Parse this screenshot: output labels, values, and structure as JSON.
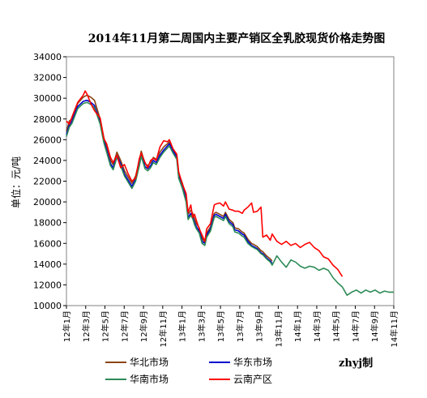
{
  "chart_data": {
    "type": "line",
    "title": "2014年11月第二周国内主要产销区全乳胶现货价格走势图",
    "ylabel": "单位：元/吨",
    "xlabel": "",
    "ylim": [
      10000,
      34000
    ],
    "yticks": [
      10000,
      12000,
      14000,
      16000,
      18000,
      20000,
      22000,
      24000,
      26000,
      28000,
      30000,
      32000,
      34000
    ],
    "x_tick_labels": [
      "12年1月",
      "12年3月",
      "12年5月",
      "12年7月",
      "12年9月",
      "12年11月",
      "13年1月",
      "13年3月",
      "13年5月",
      "13年7月",
      "13年9月",
      "13年11月",
      "14年1月",
      "14年3月",
      "14年5月",
      "14年7月",
      "14年9月",
      "14年11月"
    ],
    "x_month_range": [
      0,
      35
    ],
    "grid": false,
    "legend_position": "bottom",
    "watermark": "zhyj制",
    "series": [
      {
        "name": "华北市场",
        "color": "#8B4513",
        "x": [
          0,
          0.3,
          0.6,
          1.2,
          1.8,
          2.2,
          2.6,
          3.0,
          3.6,
          4.0,
          4.3,
          4.7,
          5.0,
          5.4,
          5.8,
          6.2,
          6.6,
          7.0,
          7.4,
          7.8,
          8.0,
          8.4,
          8.7,
          9.0,
          9.3,
          9.6,
          10.0,
          10.4,
          10.8,
          11.0,
          11.4,
          11.8,
          12.0,
          12.4,
          12.8,
          13.0,
          13.3,
          13.5,
          13.7,
          13.9,
          14.2,
          14.5,
          14.8,
          15.0,
          15.4,
          15.8,
          16.0,
          16.4,
          16.8,
          17.0,
          17.4,
          17.8,
          18.0,
          18.4,
          18.8,
          19.0,
          19.4,
          19.8,
          20.0,
          20.4,
          20.8,
          21.0,
          21.4,
          21.8,
          22.0
        ],
        "values": [
          26800,
          27800,
          28000,
          29500,
          30100,
          30300,
          30100,
          29800,
          28000,
          26200,
          25300,
          24000,
          23600,
          24800,
          24000,
          23000,
          22400,
          21800,
          22500,
          24000,
          24900,
          23700,
          23500,
          23800,
          24300,
          24100,
          24800,
          25300,
          25600,
          25800,
          25100,
          24500,
          22800,
          21800,
          20500,
          18800,
          19200,
          18900,
          18300,
          17900,
          17500,
          16500,
          16100,
          17000,
          17600,
          18900,
          19000,
          18800,
          18600,
          19000,
          18300,
          18000,
          17500,
          17400,
          17100,
          17000,
          16400,
          16000,
          15900,
          15700,
          15300,
          15200,
          14800,
          14500,
          14300
        ]
      },
      {
        "name": "华东市场",
        "color": "#0000CC",
        "x": [
          0,
          0.3,
          0.6,
          1.2,
          1.8,
          2.2,
          2.6,
          3.0,
          3.6,
          4.0,
          4.3,
          4.7,
          5.0,
          5.4,
          5.8,
          6.2,
          6.6,
          7.0,
          7.4,
          7.8,
          8.0,
          8.4,
          8.7,
          9.0,
          9.3,
          9.6,
          10.0,
          10.4,
          10.8,
          11.0,
          11.4,
          11.8,
          12.0,
          12.4,
          12.8,
          13.0,
          13.3,
          13.5,
          13.7,
          13.9,
          14.2,
          14.5,
          14.8,
          15.0,
          15.4,
          15.8,
          16.0,
          16.4,
          16.8,
          17.0,
          17.4,
          17.8,
          18.0,
          18.4,
          18.8,
          19.0,
          19.4,
          19.8,
          20.0,
          20.4,
          20.8,
          21.0,
          21.4,
          21.8,
          22.0
        ],
        "values": [
          26500,
          27400,
          27800,
          29200,
          29700,
          29800,
          29600,
          29300,
          27700,
          25900,
          25000,
          23700,
          23300,
          24500,
          23700,
          22700,
          22100,
          21500,
          22200,
          23700,
          24600,
          23400,
          23200,
          23500,
          24000,
          23800,
          24500,
          25000,
          25400,
          25600,
          24900,
          24300,
          22500,
          21500,
          20200,
          18500,
          18900,
          18600,
          18000,
          17600,
          17200,
          16200,
          16000,
          16800,
          17400,
          18700,
          18800,
          18600,
          18400,
          18800,
          18100,
          17800,
          17300,
          17200,
          16900,
          16800,
          16200,
          15800,
          15700,
          15500,
          15100,
          15000,
          14600,
          14300,
          14100
        ]
      },
      {
        "name": "华南市场",
        "color": "#2E8B57",
        "x": [
          0,
          0.3,
          0.6,
          1.2,
          1.8,
          2.2,
          2.6,
          3.0,
          3.6,
          4.0,
          4.3,
          4.7,
          5.0,
          5.4,
          5.8,
          6.2,
          6.6,
          7.0,
          7.4,
          7.8,
          8.0,
          8.4,
          8.7,
          9.0,
          9.3,
          9.6,
          10.0,
          10.4,
          10.8,
          11.0,
          11.4,
          11.8,
          12.0,
          12.4,
          12.8,
          13.0,
          13.3,
          13.5,
          13.7,
          13.9,
          14.2,
          14.5,
          14.8,
          15.0,
          15.4,
          15.8,
          16.0,
          16.4,
          16.8,
          17.0,
          17.4,
          17.8,
          18.0,
          18.4,
          18.8,
          19.0,
          19.4,
          19.8,
          20.0,
          20.4,
          20.8,
          21.0,
          21.4,
          21.8,
          22.0,
          22.5,
          23.0,
          23.5,
          24.0,
          24.5,
          25.0,
          25.5,
          26.0,
          26.5,
          27.0,
          27.5,
          28.0,
          28.5,
          29.0,
          29.5,
          30.0,
          30.5,
          31.0,
          31.5,
          32.0,
          32.5,
          33.0,
          33.5,
          34.0,
          34.5,
          35.0
        ],
        "values": [
          26300,
          27200,
          27600,
          29000,
          29500,
          29600,
          29400,
          29100,
          27500,
          25700,
          24800,
          23500,
          23100,
          24300,
          23500,
          22500,
          21900,
          21300,
          22000,
          23500,
          24400,
          23200,
          23000,
          23300,
          23800,
          23600,
          24300,
          24800,
          25200,
          25400,
          24700,
          24100,
          22300,
          21300,
          20000,
          18300,
          18700,
          18400,
          17800,
          17400,
          17000,
          16000,
          15800,
          16600,
          17200,
          18500,
          18600,
          18400,
          18200,
          18600,
          17900,
          17600,
          17100,
          17000,
          16700,
          16600,
          16000,
          15700,
          15600,
          15400,
          15000,
          14900,
          14500,
          14200,
          13900,
          14800,
          14200,
          13700,
          14400,
          14200,
          13800,
          13600,
          13800,
          13700,
          13400,
          13600,
          13400,
          12700,
          12200,
          11800,
          11000,
          11300,
          11500,
          11200,
          11500,
          11300,
          11500,
          11200,
          11400,
          11300,
          11300
        ]
      },
      {
        "name": "云南产区",
        "color": "#FF0000",
        "x": [
          0,
          0.3,
          0.6,
          1.2,
          1.8,
          2.0,
          2.2,
          2.6,
          3.0,
          3.6,
          4.0,
          4.3,
          4.7,
          5.0,
          5.4,
          5.8,
          6.2,
          6.6,
          7.0,
          7.4,
          7.8,
          8.0,
          8.4,
          8.7,
          9.0,
          9.3,
          9.6,
          10.0,
          10.4,
          10.8,
          11.0,
          11.4,
          11.8,
          12.0,
          12.4,
          12.8,
          13.0,
          13.3,
          13.5,
          13.7,
          13.9,
          14.2,
          14.5,
          14.8,
          15.0,
          15.4,
          15.8,
          16.0,
          16.4,
          16.8,
          17.0,
          17.4,
          17.8,
          18.0,
          18.4,
          18.8,
          19.0,
          19.4,
          19.8,
          20.0,
          20.4,
          20.8,
          21.0,
          21.4,
          21.8,
          22.0,
          22.5,
          23.0,
          23.5,
          24.0,
          24.5,
          25.0,
          25.5,
          26.0,
          26.5,
          27.0,
          27.5,
          28.0,
          28.5,
          29.0,
          29.5
        ],
        "values": [
          27800,
          27500,
          28200,
          29600,
          30300,
          30700,
          30400,
          29500,
          28800,
          28100,
          26100,
          25600,
          24300,
          23800,
          24500,
          23300,
          23600,
          22700,
          22000,
          22300,
          24200,
          24700,
          23800,
          23300,
          24000,
          24200,
          24000,
          25300,
          25900,
          25800,
          26000,
          25100,
          24600,
          22900,
          21700,
          20800,
          19000,
          19700,
          18500,
          18800,
          18200,
          17400,
          16800,
          16200,
          17400,
          17900,
          19700,
          19800,
          19900,
          19600,
          20000,
          19300,
          19200,
          19100,
          19100,
          18900,
          19200,
          19500,
          19900,
          19000,
          19100,
          19500,
          16600,
          16800,
          16300,
          16900,
          16200,
          15900,
          16200,
          15800,
          16000,
          15600,
          15900,
          16100,
          15600,
          15300,
          14700,
          14500,
          13900,
          13500,
          12800
        ]
      }
    ]
  }
}
